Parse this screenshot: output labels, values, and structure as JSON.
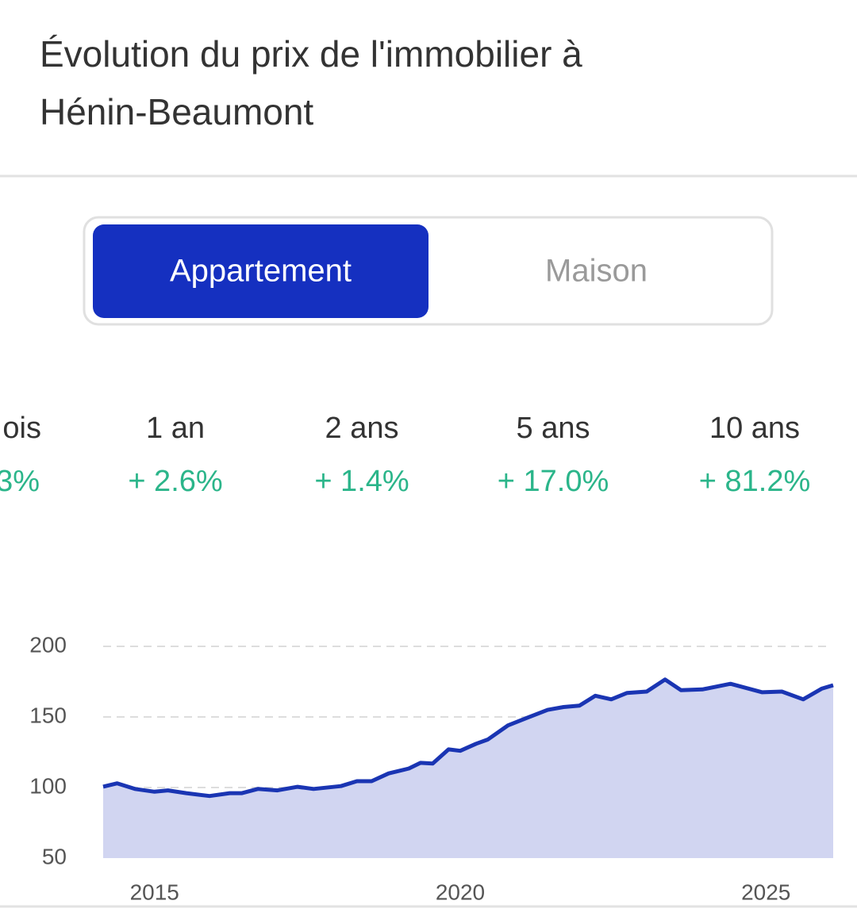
{
  "header": {
    "title_lines": [
      "Évolution du prix de l'immobilier à",
      "Hénin-Beaumont"
    ]
  },
  "toggle": {
    "options": [
      "Appartement",
      "Maison"
    ],
    "selected": 0
  },
  "stats": [
    {
      "period": "ois",
      "change": "3%"
    },
    {
      "period": "1 an",
      "change": "+ 2.6%"
    },
    {
      "period": "2 ans",
      "change": "+ 1.4%"
    },
    {
      "period": "5 ans",
      "change": "+ 17.0%"
    },
    {
      "period": "10 ans",
      "change": "+ 81.2%"
    }
  ],
  "chart_data": {
    "type": "line",
    "x": [
      2014.16,
      2014.39,
      2014.68,
      2015.0,
      2015.22,
      2015.52,
      2015.9,
      2016.23,
      2016.43,
      2016.69,
      2017.01,
      2017.34,
      2017.6,
      2018.05,
      2018.31,
      2018.55,
      2018.83,
      2019.16,
      2019.35,
      2019.55,
      2019.81,
      2020.0,
      2020.26,
      2020.45,
      2020.78,
      2021.1,
      2021.43,
      2021.69,
      2021.95,
      2022.21,
      2022.47,
      2022.73,
      2023.05,
      2023.35,
      2023.61,
      2023.96,
      2024.42,
      2024.94,
      2025.26,
      2025.61,
      2025.91,
      2026.1
    ],
    "series": [
      {
        "color": "#1a35b3",
        "values": [
          100.6,
          103,
          99,
          97,
          98,
          96,
          94,
          96,
          96,
          99,
          98,
          100.5,
          99,
          101,
          104.5,
          104.5,
          110,
          113.5,
          117.5,
          117,
          127,
          126,
          131,
          134,
          144,
          149.5,
          155,
          157,
          158,
          165,
          162.5,
          167,
          168,
          176.5,
          169,
          169.5,
          173.5,
          167.5,
          168,
          162.5,
          170,
          172.5
        ]
      }
    ],
    "fill_color": "#d1d5f1",
    "xlim": [
      2014.16,
      2026.1
    ],
    "ylim": [
      50,
      200
    ],
    "xticks": [
      2015,
      2020,
      2025
    ],
    "yticks": [
      50,
      100,
      150,
      200
    ],
    "grid": true
  }
}
